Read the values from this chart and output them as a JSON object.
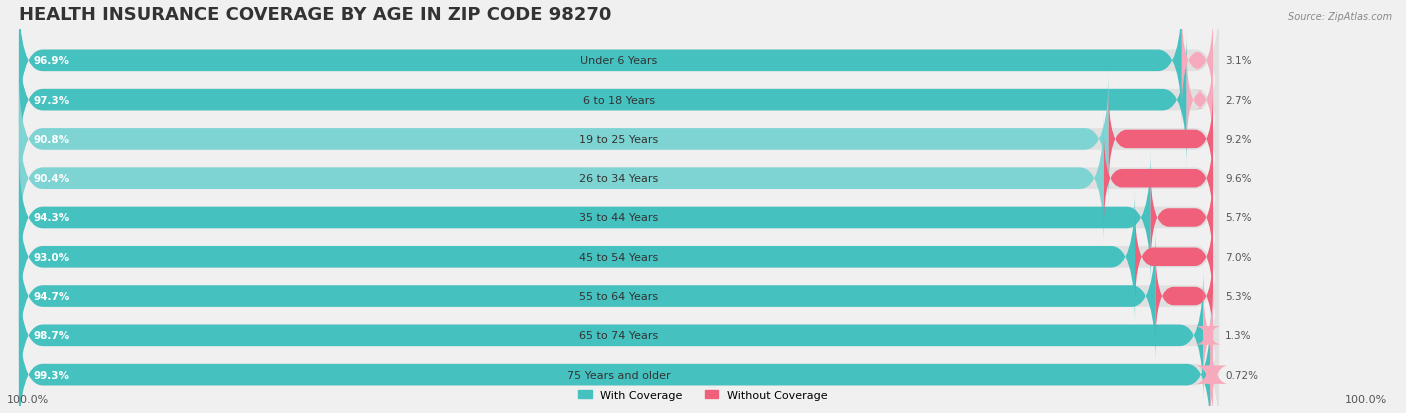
{
  "title": "HEALTH INSURANCE COVERAGE BY AGE IN ZIP CODE 98270",
  "source": "Source: ZipAtlas.com",
  "categories": [
    "Under 6 Years",
    "6 to 18 Years",
    "19 to 25 Years",
    "26 to 34 Years",
    "35 to 44 Years",
    "45 to 54 Years",
    "55 to 64 Years",
    "65 to 74 Years",
    "75 Years and older"
  ],
  "with_coverage": [
    96.9,
    97.3,
    90.8,
    90.4,
    94.3,
    93.0,
    94.7,
    98.7,
    99.3
  ],
  "without_coverage": [
    3.1,
    2.7,
    9.2,
    9.6,
    5.7,
    7.0,
    5.3,
    1.3,
    0.72
  ],
  "with_coverage_labels": [
    "96.9%",
    "97.3%",
    "90.8%",
    "90.4%",
    "94.3%",
    "93.0%",
    "94.7%",
    "98.7%",
    "99.3%"
  ],
  "without_coverage_labels": [
    "3.1%",
    "2.7%",
    "9.2%",
    "9.6%",
    "5.7%",
    "7.0%",
    "5.3%",
    "1.3%",
    "0.72%"
  ],
  "color_with": "#45C1C0",
  "color_without_strong": "#F0607A",
  "color_without_light": "#F7AABB",
  "bg_color": "#f0f0f0",
  "bar_bg_color": "#e8e8e8",
  "axis_label_left": "100.0%",
  "axis_label_right": "100.0%",
  "legend_with": "With Coverage",
  "legend_without": "Without Coverage",
  "title_fontsize": 13,
  "bar_height": 0.55,
  "figsize": [
    14.06,
    4.14
  ],
  "dpi": 100
}
